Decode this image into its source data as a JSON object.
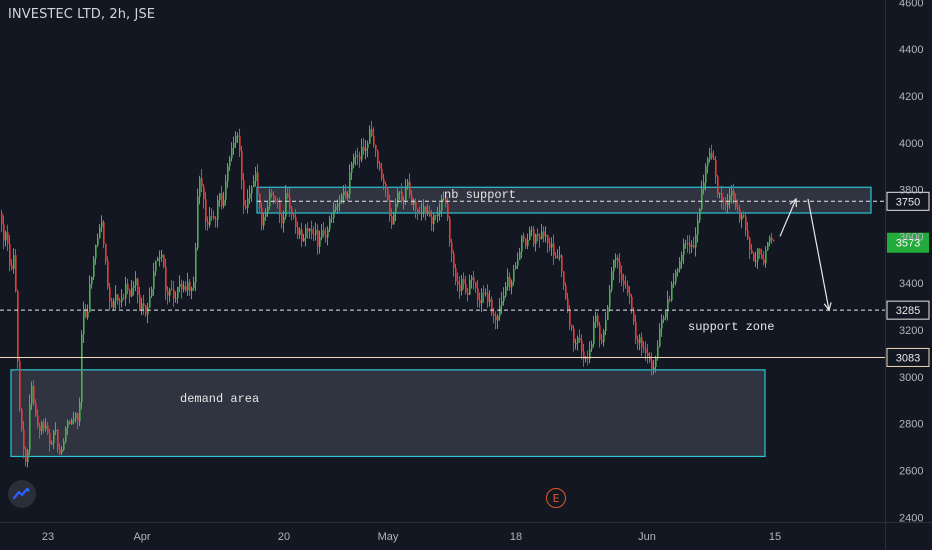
{
  "header": {
    "title": "INVESTEC LTD, 2h, JSE"
  },
  "colors": {
    "background": "#131722",
    "up": "#4caf50",
    "down": "#ef3b36",
    "zone_border": "#2bc4d4",
    "zone_fill": "#363a45",
    "axis_text": "#b2b5be",
    "last_price_badge": "#22ab3a"
  },
  "icons": {
    "logo": "tradingview-logo-icon",
    "event": "earnings-event-icon"
  },
  "event_marker": {
    "label": "E"
  },
  "chart_data": {
    "type": "candlestick",
    "title": "INVESTEC LTD, 2h, JSE",
    "y_axis": {
      "ticks": [
        2400,
        2600,
        2800,
        3000,
        3200,
        3400,
        3600,
        3800,
        4000,
        4200,
        4400,
        4600
      ],
      "range": [
        2380,
        4610
      ],
      "position": "right"
    },
    "x_axis": {
      "ticks": [
        "23",
        "Apr",
        "20",
        "May",
        "18",
        "Jun",
        "15"
      ]
    },
    "last_price": 3573,
    "price_labels": [
      {
        "value": 3750,
        "style": "dashed-white"
      },
      {
        "value": 3285,
        "style": "dashed-white"
      },
      {
        "value": 3083,
        "style": "solid-beige"
      }
    ],
    "zones": [
      {
        "name": "demand area",
        "top": 3030,
        "bottom": 2660
      },
      {
        "name": "nb support",
        "top": 3810,
        "bottom": 3700
      }
    ],
    "annotations": [
      "demand area",
      "nb support",
      "support zone"
    ],
    "projection_arrows": [
      {
        "from": 3600,
        "to": 3760
      },
      {
        "from": 3760,
        "to": 3285
      }
    ],
    "ohlc_anchors": [
      [
        0,
        3700
      ],
      [
        2,
        3560
      ],
      [
        6,
        3640
      ],
      [
        10,
        3420
      ],
      [
        14,
        3520
      ],
      [
        18,
        2920
      ],
      [
        22,
        2720
      ],
      [
        26,
        2620
      ],
      [
        30,
        2980
      ],
      [
        34,
        2860
      ],
      [
        38,
        2740
      ],
      [
        42,
        2800
      ],
      [
        46,
        2770
      ],
      [
        50,
        2720
      ],
      [
        54,
        2780
      ],
      [
        58,
        2680
      ],
      [
        62,
        2720
      ],
      [
        66,
        2830
      ],
      [
        70,
        2800
      ],
      [
        74,
        2860
      ],
      [
        78,
        2780
      ],
      [
        82,
        3320
      ],
      [
        86,
        3240
      ],
      [
        90,
        3420
      ],
      [
        94,
        3520
      ],
      [
        98,
        3640
      ],
      [
        102,
        3640
      ],
      [
        106,
        3420
      ],
      [
        110,
        3260
      ],
      [
        114,
        3380
      ],
      [
        118,
        3280
      ],
      [
        122,
        3340
      ],
      [
        126,
        3400
      ],
      [
        130,
        3340
      ],
      [
        134,
        3440
      ],
      [
        138,
        3300
      ],
      [
        142,
        3300
      ],
      [
        146,
        3240
      ],
      [
        150,
        3380
      ],
      [
        154,
        3460
      ],
      [
        158,
        3520
      ],
      [
        162,
        3520
      ],
      [
        166,
        3320
      ],
      [
        170,
        3380
      ],
      [
        174,
        3300
      ],
      [
        178,
        3420
      ],
      [
        182,
        3360
      ],
      [
        186,
        3400
      ],
      [
        190,
        3380
      ],
      [
        194,
        3440
      ],
      [
        198,
        3860
      ],
      [
        202,
        3820
      ],
      [
        206,
        3600
      ],
      [
        210,
        3720
      ],
      [
        214,
        3640
      ],
      [
        218,
        3820
      ],
      [
        222,
        3700
      ],
      [
        226,
        3880
      ],
      [
        230,
        3960
      ],
      [
        234,
        4020
      ],
      [
        238,
        4040
      ],
      [
        242,
        3760
      ],
      [
        246,
        3720
      ],
      [
        250,
        3800
      ],
      [
        254,
        3880
      ],
      [
        258,
        3760
      ],
      [
        262,
        3640
      ],
      [
        266,
        3720
      ],
      [
        270,
        3800
      ],
      [
        274,
        3760
      ],
      [
        278,
        3720
      ],
      [
        282,
        3660
      ],
      [
        286,
        3800
      ],
      [
        290,
        3700
      ],
      [
        294,
        3660
      ],
      [
        298,
        3620
      ],
      [
        302,
        3580
      ],
      [
        306,
        3640
      ],
      [
        310,
        3600
      ],
      [
        314,
        3620
      ],
      [
        318,
        3560
      ],
      [
        322,
        3620
      ],
      [
        326,
        3600
      ],
      [
        330,
        3680
      ],
      [
        334,
        3700
      ],
      [
        338,
        3720
      ],
      [
        342,
        3780
      ],
      [
        346,
        3760
      ],
      [
        350,
        3900
      ],
      [
        354,
        3960
      ],
      [
        358,
        3920
      ],
      [
        362,
        3980
      ],
      [
        366,
        4000
      ],
      [
        370,
        4060
      ],
      [
        374,
        3960
      ],
      [
        378,
        3900
      ],
      [
        382,
        3860
      ],
      [
        386,
        3760
      ],
      [
        390,
        3640
      ],
      [
        394,
        3740
      ],
      [
        398,
        3800
      ],
      [
        402,
        3720
      ],
      [
        406,
        3840
      ],
      [
        410,
        3760
      ],
      [
        414,
        3720
      ],
      [
        418,
        3680
      ],
      [
        422,
        3720
      ],
      [
        426,
        3700
      ],
      [
        430,
        3660
      ],
      [
        434,
        3720
      ],
      [
        438,
        3680
      ],
      [
        442,
        3760
      ],
      [
        446,
        3700
      ],
      [
        450,
        3560
      ],
      [
        454,
        3420
      ],
      [
        458,
        3380
      ],
      [
        462,
        3400
      ],
      [
        466,
        3360
      ],
      [
        470,
        3420
      ],
      [
        474,
        3380
      ],
      [
        478,
        3300
      ],
      [
        482,
        3360
      ],
      [
        486,
        3340
      ],
      [
        490,
        3300
      ],
      [
        494,
        3240
      ],
      [
        498,
        3260
      ],
      [
        502,
        3340
      ],
      [
        506,
        3420
      ],
      [
        510,
        3380
      ],
      [
        514,
        3460
      ],
      [
        518,
        3540
      ],
      [
        522,
        3600
      ],
      [
        526,
        3560
      ],
      [
        530,
        3620
      ],
      [
        534,
        3580
      ],
      [
        538,
        3600
      ],
      [
        542,
        3640
      ],
      [
        546,
        3580
      ],
      [
        550,
        3560
      ],
      [
        554,
        3500
      ],
      [
        558,
        3520
      ],
      [
        562,
        3440
      ],
      [
        566,
        3320
      ],
      [
        570,
        3200
      ],
      [
        574,
        3140
      ],
      [
        578,
        3160
      ],
      [
        582,
        3100
      ],
      [
        586,
        3080
      ],
      [
        590,
        3100
      ],
      [
        594,
        3260
      ],
      [
        598,
        3180
      ],
      [
        602,
        3140
      ],
      [
        606,
        3280
      ],
      [
        610,
        3400
      ],
      [
        614,
        3520
      ],
      [
        618,
        3480
      ],
      [
        622,
        3420
      ],
      [
        626,
        3400
      ],
      [
        630,
        3300
      ],
      [
        634,
        3180
      ],
      [
        638,
        3160
      ],
      [
        642,
        3140
      ],
      [
        646,
        3080
      ],
      [
        650,
        3060
      ],
      [
        654,
        3040
      ],
      [
        658,
        3160
      ],
      [
        662,
        3260
      ],
      [
        666,
        3300
      ],
      [
        670,
        3360
      ],
      [
        674,
        3420
      ],
      [
        678,
        3480
      ],
      [
        682,
        3540
      ],
      [
        686,
        3580
      ],
      [
        690,
        3560
      ],
      [
        694,
        3560
      ],
      [
        698,
        3700
      ],
      [
        702,
        3820
      ],
      [
        706,
        3900
      ],
      [
        710,
        3980
      ],
      [
        714,
        3880
      ],
      [
        718,
        3780
      ],
      [
        722,
        3740
      ],
      [
        726,
        3720
      ],
      [
        730,
        3800
      ],
      [
        734,
        3760
      ],
      [
        738,
        3700
      ],
      [
        742,
        3680
      ],
      [
        746,
        3620
      ],
      [
        750,
        3520
      ],
      [
        754,
        3500
      ],
      [
        758,
        3560
      ],
      [
        762,
        3460
      ],
      [
        766,
        3580
      ],
      [
        770,
        3570
      ],
      [
        773,
        3573
      ]
    ]
  }
}
